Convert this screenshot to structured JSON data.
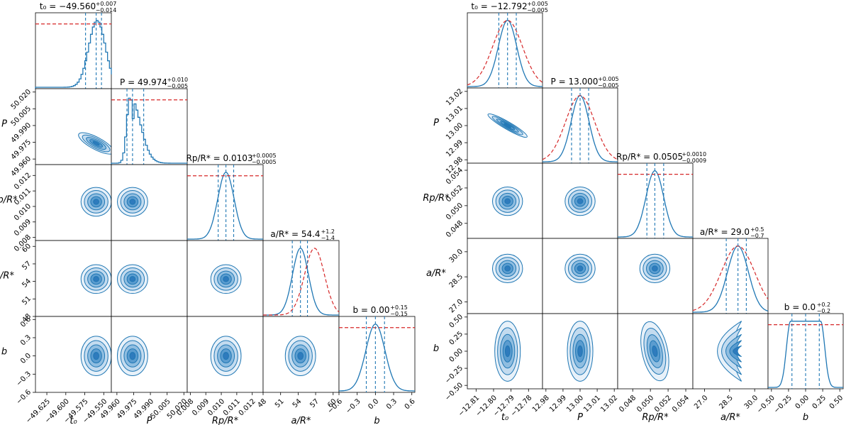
{
  "chart_data": [
    {
      "type": "corner",
      "name": "left-corner",
      "params": [
        {
          "key": "t0",
          "label": "t₀",
          "title": "t₀ = −49.560",
          "err_plus": "+0.007",
          "err_minus": "−0.014",
          "median": -49.56,
          "lo": -49.574,
          "hi": -49.553,
          "range": [
            -49.64,
            -49.54
          ],
          "ticks": [
            "−49.625",
            "−49.600",
            "−49.575",
            "−49.550"
          ],
          "tick_values": [
            -49.625,
            -49.6,
            -49.575,
            -49.55
          ],
          "prior": {
            "kind": "flat"
          },
          "hist": "step"
        },
        {
          "key": "P",
          "label": "P",
          "title": "P = 49.974",
          "err_plus": "+0.010",
          "err_minus": "−0.005",
          "median": 49.974,
          "lo": 49.969,
          "hi": 49.984,
          "range": [
            49.955,
            50.023
          ],
          "ticks": [
            "49.960",
            "49.975",
            "49.990",
            "50.005",
            "50.020"
          ],
          "tick_values": [
            49.96,
            49.975,
            49.99,
            50.005,
            50.02
          ],
          "prior": {
            "kind": "flat"
          },
          "hist": "step-skew"
        },
        {
          "key": "rp",
          "label": "Rp/R*",
          "title": "Rp/R* = 0.0103",
          "err_plus": "+0.0005",
          "err_minus": "−0.0005",
          "median": 0.0103,
          "lo": 0.0098,
          "hi": 0.0108,
          "range": [
            0.0078,
            0.0127
          ],
          "ticks": [
            "0.008",
            "0.009",
            "0.010",
            "0.011",
            "0.012"
          ],
          "tick_values": [
            0.008,
            0.009,
            0.01,
            0.011,
            0.012
          ],
          "prior": {
            "kind": "flat"
          },
          "hist": "smooth"
        },
        {
          "key": "a",
          "label": "a/R*",
          "title": "a/R* = 54.4",
          "err_plus": "+1.2",
          "err_minus": "−1.4",
          "median": 54.4,
          "lo": 53.0,
          "hi": 55.6,
          "range": [
            48,
            61
          ],
          "ticks": [
            "48",
            "51",
            "54",
            "57",
            "60"
          ],
          "tick_values": [
            48,
            51,
            54,
            57,
            60
          ],
          "prior": {
            "kind": "gauss",
            "mu": 56.8,
            "sigma": 1.7
          },
          "hist": "smooth"
        },
        {
          "key": "b",
          "label": "b",
          "title": "b = 0.00",
          "err_plus": "+0.15",
          "err_minus": "−0.15",
          "median": 0.0,
          "lo": -0.15,
          "hi": 0.15,
          "range": [
            -0.6,
            0.65
          ],
          "ticks": [
            "−0.6",
            "−0.3",
            "0.0",
            "0.3",
            "0.6"
          ],
          "tick_values": [
            -0.6,
            -0.3,
            0.0,
            0.3,
            0.6
          ],
          "prior": {
            "kind": "flat"
          },
          "hist": "smooth"
        }
      ],
      "colors": {
        "contour": "#1f77b4",
        "prior": "#d62728"
      }
    },
    {
      "type": "corner",
      "name": "right-corner",
      "params": [
        {
          "key": "t0",
          "label": "t₀",
          "title": "t₀ = −12.792",
          "err_plus": "+0.005",
          "err_minus": "−0.005",
          "median": -12.792,
          "lo": -12.797,
          "hi": -12.787,
          "range": [
            -12.815,
            -12.772
          ],
          "ticks": [
            "−12.81",
            "−12.80",
            "−12.79",
            "−12.78"
          ],
          "tick_values": [
            -12.81,
            -12.8,
            -12.79,
            -12.78
          ],
          "prior": {
            "kind": "gauss",
            "mu": -12.792,
            "sigma": 0.0085
          },
          "hist": "smooth"
        },
        {
          "key": "P",
          "label": "P",
          "title": "P = 13.000",
          "err_plus": "+0.005",
          "err_minus": "−0.005",
          "median": 13.0,
          "lo": 12.995,
          "hi": 13.005,
          "range": [
            12.978,
            13.022
          ],
          "ticks": [
            "12.98",
            "12.99",
            "13.00",
            "13.01",
            "13.02"
          ],
          "tick_values": [
            12.98,
            12.99,
            13.0,
            13.01,
            13.02
          ],
          "prior": {
            "kind": "gauss",
            "mu": 13.0,
            "sigma": 0.0085
          },
          "hist": "smooth"
        },
        {
          "key": "rp",
          "label": "Rp/R*",
          "title": "Rp/R* = 0.0505",
          "err_plus": "+0.0010",
          "err_minus": "−0.0009",
          "median": 0.0505,
          "lo": 0.0496,
          "hi": 0.0515,
          "range": [
            0.0463,
            0.0548
          ],
          "ticks": [
            "0.048",
            "0.050",
            "0.052",
            "0.054"
          ],
          "tick_values": [
            0.048,
            0.05,
            0.052,
            0.054
          ],
          "prior": {
            "kind": "flat"
          },
          "hist": "smooth"
        },
        {
          "key": "a",
          "label": "a/R*",
          "title": "a/R* = 29.0",
          "err_plus": "+0.5",
          "err_minus": "−0.7",
          "median": 29.0,
          "lo": 28.3,
          "hi": 29.5,
          "range": [
            26.3,
            30.8
          ],
          "ticks": [
            "27.0",
            "28.5",
            "30.0"
          ],
          "tick_values": [
            27.0,
            28.5,
            30.0
          ],
          "prior": {
            "kind": "gauss",
            "mu": 29.0,
            "sigma": 1.0
          },
          "hist": "smooth"
        },
        {
          "key": "b",
          "label": "b",
          "title": "b = 0.0",
          "err_plus": "+0.2",
          "err_minus": "−0.2",
          "median": 0.0,
          "lo": -0.2,
          "hi": 0.2,
          "range": [
            -0.55,
            0.55
          ],
          "ticks": [
            "−0.50",
            "−0.25",
            "0.00",
            "0.25",
            "0.50"
          ],
          "tick_values": [
            -0.5,
            -0.25,
            0.0,
            0.25,
            0.5
          ],
          "prior": {
            "kind": "flat"
          },
          "hist": "flat-top"
        }
      ],
      "colors": {
        "contour": "#1f77b4",
        "prior": "#d62728"
      }
    }
  ]
}
